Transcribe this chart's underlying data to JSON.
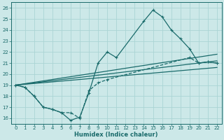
{
  "background_color": "#cce8e8",
  "grid_color": "#aad4d4",
  "line_color": "#1a6b6b",
  "xlabel": "Humidex (Indice chaleur)",
  "xlim": [
    -0.5,
    22.5
  ],
  "ylim": [
    15.5,
    26.5
  ],
  "xticks": [
    0,
    1,
    2,
    3,
    4,
    5,
    6,
    7,
    8,
    9,
    10,
    11,
    12,
    13,
    14,
    15,
    16,
    17,
    18,
    19,
    20,
    21,
    22
  ],
  "yticks": [
    16,
    17,
    18,
    19,
    20,
    21,
    22,
    23,
    24,
    25,
    26
  ],
  "line1_x": [
    0,
    1,
    2,
    3,
    4,
    5,
    6,
    7,
    8,
    9,
    10,
    11,
    14,
    15,
    16,
    17,
    18,
    19,
    20,
    21,
    22
  ],
  "line1_y": [
    19.0,
    18.8,
    18.0,
    17.0,
    16.8,
    16.5,
    15.8,
    16.1,
    18.3,
    21.0,
    22.0,
    21.5,
    24.8,
    25.8,
    25.2,
    24.0,
    23.2,
    22.3,
    21.0,
    21.1,
    21.0
  ],
  "line2_x": [
    0,
    1,
    2,
    3,
    4,
    5,
    6,
    7,
    8,
    9,
    10,
    19,
    20,
    21,
    22
  ],
  "line2_y": [
    19.0,
    18.8,
    18.0,
    17.0,
    16.8,
    16.5,
    16.5,
    16.0,
    18.5,
    19.2,
    19.5,
    21.5,
    21.0,
    21.1,
    21.0
  ],
  "line3_x": [
    0,
    22
  ],
  "line3_y": [
    19.0,
    21.8
  ],
  "line4_x": [
    0,
    22
  ],
  "line4_y": [
    19.0,
    21.2
  ],
  "line5_x": [
    0,
    22
  ],
  "line5_y": [
    19.0,
    20.6
  ]
}
